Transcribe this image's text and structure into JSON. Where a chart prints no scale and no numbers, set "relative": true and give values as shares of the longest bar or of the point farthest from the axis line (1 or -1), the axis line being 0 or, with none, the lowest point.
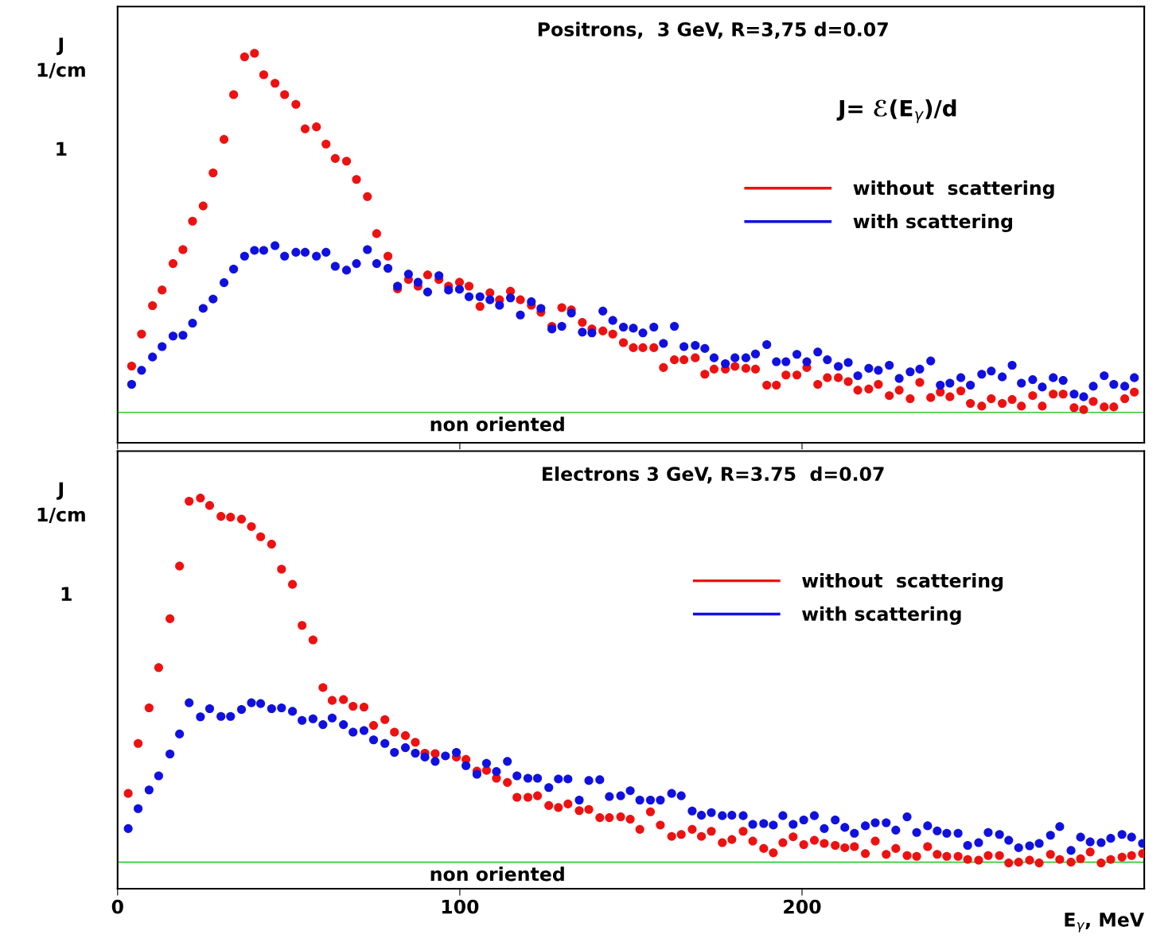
{
  "chart_data": [
    {
      "type": "scatter",
      "title": "Positrons,  3 GeV, R=3,75 d=0.07",
      "ylabel": "J\n1/cm",
      "relative": true,
      "xlim": [
        0,
        300
      ],
      "xticks": [
        0,
        100,
        200
      ],
      "tick_labels": false,
      "legend": "top right",
      "marker": "circle",
      "annotations": [
        "J= ℰ(E$_{γ}$)/d",
        "1"
      ],
      "ref_lines": [
        {
          "axis": "y",
          "value": 0.078,
          "label": "non oriented",
          "color": "#33cc33"
        }
      ],
      "series": [
        {
          "name": "without  scattering",
          "color": "#ee1111",
          "x": [
            4.1,
            7.0,
            10.2,
            13.0,
            16.2,
            19.1,
            21.9,
            25.0,
            27.9,
            31.1,
            33.9,
            37.1,
            40.0,
            42.7,
            46.0,
            48.8,
            52.1,
            54.8,
            58.1,
            60.9,
            63.6,
            66.9,
            69.8,
            73.0,
            75.7,
            79.0,
            81.8,
            85.0,
            87.8,
            90.6,
            93.9,
            96.7,
            99.9,
            102.7,
            105.9,
            108.8,
            111.6,
            114.8,
            117.7,
            120.9,
            123.7,
            126.9,
            129.8,
            132.6,
            135.8,
            138.6,
            141.8,
            144.7,
            147.8,
            150.7,
            153.5,
            156.7,
            159.5,
            162.7,
            165.5,
            168.8,
            171.6,
            174.3,
            177.6,
            180.4,
            183.6,
            186.4,
            189.7,
            192.5,
            195.3,
            198.5,
            201.4,
            204.6,
            207.4,
            210.6,
            213.5,
            216.3,
            219.5,
            222.3,
            225.5,
            228.4,
            231.6,
            234.4,
            237.6,
            240.4,
            243.2,
            246.4,
            249.2,
            252.5,
            255.3,
            258.5,
            261.4,
            264.1,
            267.4,
            270.2,
            273.4,
            276.3,
            279.5,
            282.3,
            285.1,
            288.3,
            291.1,
            294.3,
            297.1
          ],
          "values": [
            0.197,
            0.279,
            0.352,
            0.392,
            0.46,
            0.496,
            0.569,
            0.608,
            0.693,
            0.779,
            0.894,
            0.991,
            1.0,
            0.945,
            0.923,
            0.894,
            0.869,
            0.806,
            0.811,
            0.767,
            0.73,
            0.723,
            0.676,
            0.632,
            0.537,
            0.479,
            0.395,
            0.419,
            0.402,
            0.431,
            0.419,
            0.402,
            0.412,
            0.402,
            0.35,
            0.385,
            0.367,
            0.389,
            0.367,
            0.353,
            0.335,
            0.299,
            0.347,
            0.341,
            0.309,
            0.292,
            0.287,
            0.279,
            0.257,
            0.244,
            0.244,
            0.244,
            0.193,
            0.213,
            0.213,
            0.218,
            0.176,
            0.189,
            0.189,
            0.196,
            0.191,
            0.189,
            0.148,
            0.148,
            0.174,
            0.174,
            0.193,
            0.15,
            0.167,
            0.167,
            0.157,
            0.135,
            0.138,
            0.15,
            0.121,
            0.135,
            0.113,
            0.155,
            0.116,
            0.13,
            0.118,
            0.133,
            0.101,
            0.094,
            0.113,
            0.101,
            0.111,
            0.094,
            0.121,
            0.094,
            0.125,
            0.125,
            0.09,
            0.085,
            0.106,
            0.092,
            0.092,
            0.113,
            0.13
          ]
        },
        {
          "name": "with scattering",
          "color": "#1010e0",
          "x": [
            4.1,
            7.0,
            10.2,
            13.0,
            16.2,
            19.1,
            21.9,
            25.0,
            27.9,
            31.1,
            33.9,
            37.1,
            40.0,
            42.7,
            46.0,
            48.8,
            52.1,
            54.8,
            58.1,
            60.9,
            63.6,
            66.9,
            69.8,
            73.0,
            75.7,
            79.0,
            81.8,
            85.0,
            87.8,
            90.6,
            93.9,
            96.7,
            99.9,
            102.7,
            105.9,
            108.8,
            111.6,
            114.8,
            117.7,
            120.9,
            123.7,
            126.9,
            129.8,
            132.6,
            135.8,
            138.6,
            141.8,
            144.7,
            147.8,
            150.7,
            153.5,
            156.7,
            159.5,
            162.7,
            165.5,
            168.8,
            171.6,
            174.3,
            177.6,
            180.4,
            183.6,
            186.4,
            189.7,
            192.5,
            195.3,
            198.5,
            201.4,
            204.6,
            207.4,
            210.6,
            213.5,
            216.3,
            219.5,
            222.3,
            225.5,
            228.4,
            231.6,
            234.4,
            237.6,
            240.4,
            243.2,
            246.4,
            249.2,
            252.5,
            255.3,
            258.5,
            261.4,
            264.1,
            267.4,
            270.2,
            273.4,
            276.3,
            279.5,
            282.3,
            285.1,
            288.3,
            291.1,
            294.3,
            297.1
          ],
          "values": [
            0.15,
            0.186,
            0.22,
            0.247,
            0.274,
            0.276,
            0.307,
            0.345,
            0.369,
            0.411,
            0.446,
            0.479,
            0.494,
            0.494,
            0.506,
            0.479,
            0.489,
            0.489,
            0.479,
            0.489,
            0.453,
            0.443,
            0.46,
            0.496,
            0.46,
            0.448,
            0.402,
            0.433,
            0.412,
            0.387,
            0.429,
            0.392,
            0.394,
            0.375,
            0.375,
            0.367,
            0.353,
            0.372,
            0.328,
            0.362,
            0.345,
            0.292,
            0.299,
            0.333,
            0.284,
            0.282,
            0.338,
            0.314,
            0.297,
            0.294,
            0.282,
            0.297,
            0.255,
            0.299,
            0.247,
            0.25,
            0.242,
            0.218,
            0.203,
            0.218,
            0.218,
            0.228,
            0.252,
            0.208,
            0.208,
            0.227,
            0.208,
            0.233,
            0.213,
            0.196,
            0.206,
            0.172,
            0.191,
            0.186,
            0.199,
            0.165,
            0.182,
            0.189,
            0.21,
            0.148,
            0.153,
            0.167,
            0.148,
            0.176,
            0.184,
            0.169,
            0.199,
            0.153,
            0.162,
            0.143,
            0.167,
            0.16,
            0.125,
            0.118,
            0.145,
            0.172,
            0.15,
            0.145,
            0.167
          ]
        }
      ]
    },
    {
      "type": "scatter",
      "title": "Electrons 3 GeV, R=3.75  d=0.07",
      "ylabel": "J\n1/cm",
      "xlabel": "E$_{γ}$, MeV",
      "relative": true,
      "xlim": [
        0,
        300
      ],
      "xticks": [
        0,
        100,
        200
      ],
      "tick_labels": "x",
      "legend": "top right",
      "marker": "circle",
      "annotations": [
        "1"
      ],
      "ref_lines": [
        {
          "axis": "y",
          "value": 0.068,
          "label": "non oriented",
          "color": "#33cc33"
        }
      ],
      "series": [
        {
          "name": "without  scattering",
          "color": "#ee1111",
          "x": [
            3.1,
            6.0,
            9.2,
            12.0,
            15.3,
            18.1,
            20.9,
            24.2,
            26.9,
            30.2,
            33.0,
            36.2,
            39.1,
            41.8,
            45.0,
            47.9,
            51.1,
            53.9,
            57.1,
            60.0,
            62.7,
            66.0,
            68.8,
            72.0,
            74.8,
            78.1,
            80.9,
            84.1,
            87.0,
            89.8,
            92.8,
            99.0,
            101.8,
            105.0,
            107.8,
            110.7,
            113.9,
            116.7,
            119.9,
            122.7,
            126.0,
            128.8,
            131.6,
            134.9,
            137.7,
            140.9,
            143.7,
            147.0,
            149.8,
            152.6,
            155.7,
            158.6,
            161.9,
            164.7,
            167.9,
            170.6,
            173.5,
            176.7,
            179.5,
            182.8,
            185.6,
            188.8,
            191.6,
            194.4,
            197.4,
            200.5,
            203.6,
            206.5,
            209.7,
            212.5,
            215.3,
            218.5,
            221.4,
            224.6,
            227.4,
            230.7,
            233.5,
            236.7,
            239.5,
            242.3,
            245.6,
            248.4,
            251.6,
            254.4,
            257.7,
            260.4,
            263.3,
            266.5,
            269.3,
            272.6,
            275.3,
            278.6,
            281.4,
            284.2,
            287.4,
            290.2,
            293.5,
            296.3,
            299.5
          ],
          "values": [
            0.244,
            0.372,
            0.463,
            0.566,
            0.691,
            0.826,
            0.992,
            1.0,
            0.981,
            0.953,
            0.951,
            0.946,
            0.927,
            0.901,
            0.882,
            0.818,
            0.779,
            0.674,
            0.637,
            0.515,
            0.482,
            0.484,
            0.467,
            0.465,
            0.418,
            0.433,
            0.401,
            0.392,
            0.375,
            0.347,
            0.346,
            0.337,
            0.331,
            0.301,
            0.303,
            0.283,
            0.272,
            0.234,
            0.234,
            0.238,
            0.213,
            0.208,
            0.217,
            0.2,
            0.203,
            0.182,
            0.182,
            0.184,
            0.178,
            0.152,
            0.197,
            0.163,
            0.134,
            0.139,
            0.152,
            0.134,
            0.147,
            0.118,
            0.126,
            0.147,
            0.122,
            0.103,
            0.092,
            0.118,
            0.133,
            0.113,
            0.124,
            0.116,
            0.111,
            0.105,
            0.108,
            0.09,
            0.122,
            0.088,
            0.103,
            0.085,
            0.083,
            0.108,
            0.088,
            0.083,
            0.083,
            0.075,
            0.073,
            0.085,
            0.085,
            0.066,
            0.068,
            0.073,
            0.066,
            0.088,
            0.075,
            0.068,
            0.077,
            0.094,
            0.066,
            0.075,
            0.081,
            0.085,
            0.09
          ]
        },
        {
          "name": "with scattering",
          "color": "#1010e0",
          "x": [
            3.1,
            6.0,
            9.2,
            12.0,
            15.3,
            18.1,
            20.9,
            24.2,
            26.9,
            30.2,
            33.0,
            36.2,
            39.1,
            41.8,
            45.0,
            47.9,
            51.1,
            53.9,
            57.1,
            60.0,
            62.7,
            66.0,
            68.8,
            72.0,
            74.8,
            78.1,
            80.9,
            84.1,
            87.0,
            89.8,
            92.8,
            95.8,
            99.0,
            101.8,
            105.0,
            107.8,
            110.7,
            113.9,
            116.7,
            119.9,
            122.7,
            126.0,
            128.8,
            131.6,
            134.9,
            137.7,
            140.9,
            143.7,
            147.0,
            149.8,
            152.6,
            155.7,
            158.6,
            161.9,
            164.7,
            167.9,
            170.6,
            173.5,
            176.7,
            179.5,
            182.8,
            185.6,
            188.8,
            191.6,
            194.4,
            197.4,
            200.5,
            203.6,
            206.5,
            209.7,
            212.5,
            215.3,
            218.5,
            221.4,
            224.6,
            227.4,
            230.7,
            233.5,
            236.7,
            239.5,
            242.3,
            245.6,
            248.4,
            251.6,
            254.4,
            257.7,
            260.4,
            263.3,
            266.5,
            269.3,
            272.6,
            275.3,
            278.6,
            281.4,
            284.2,
            287.4,
            290.2,
            293.5,
            296.3,
            299.5
          ],
          "values": [
            0.154,
            0.205,
            0.253,
            0.289,
            0.345,
            0.396,
            0.476,
            0.44,
            0.461,
            0.441,
            0.441,
            0.459,
            0.476,
            0.474,
            0.461,
            0.463,
            0.454,
            0.431,
            0.435,
            0.42,
            0.437,
            0.42,
            0.401,
            0.405,
            0.381,
            0.372,
            0.349,
            0.361,
            0.347,
            0.337,
            0.326,
            0.34,
            0.349,
            0.315,
            0.293,
            0.321,
            0.3,
            0.326,
            0.289,
            0.283,
            0.283,
            0.259,
            0.281,
            0.281,
            0.227,
            0.277,
            0.279,
            0.236,
            0.238,
            0.251,
            0.227,
            0.227,
            0.227,
            0.244,
            0.238,
            0.199,
            0.188,
            0.195,
            0.187,
            0.188,
            0.187,
            0.165,
            0.167,
            0.163,
            0.187,
            0.165,
            0.176,
            0.187,
            0.154,
            0.176,
            0.157,
            0.142,
            0.161,
            0.169,
            0.169,
            0.15,
            0.184,
            0.144,
            0.161,
            0.148,
            0.142,
            0.142,
            0.111,
            0.118,
            0.144,
            0.139,
            0.124,
            0.105,
            0.11,
            0.116,
            0.137,
            0.159,
            0.098,
            0.132,
            0.12,
            0.118,
            0.129,
            0.139,
            0.132,
            0.116
          ]
        }
      ]
    }
  ]
}
